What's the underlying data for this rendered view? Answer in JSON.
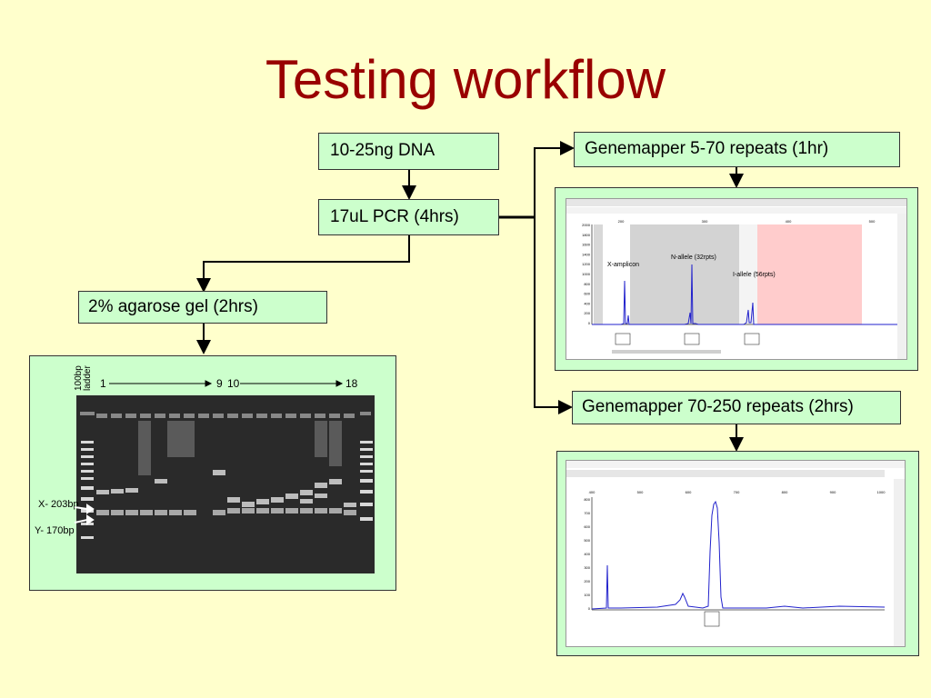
{
  "title": "Testing workflow",
  "steps": {
    "dna": "10-25ng DNA",
    "pcr": "17uL PCR (4hrs)",
    "gel": "2% agarose gel (2hrs)",
    "gm_short": "Genemapper 5-70 repeats (1hr)",
    "gm_long": "Genemapper 70-250 repeats (2hrs)"
  },
  "gel_panel": {
    "ladder_label": "100bp ladder",
    "lane_1": "1",
    "lane_9": "9",
    "lane_10": "10",
    "lane_18": "18",
    "x_band": "X- 203bp",
    "y_band": "Y- 170bp"
  },
  "trace_top": {
    "x_amplicon": "X-amplicon",
    "n_allele": "N-allele (32rpts)",
    "i_allele": "I-allele (56rpts)",
    "y_ticks": [
      "2000",
      "1800",
      "1600",
      "1400",
      "1200",
      "1000",
      "800",
      "600",
      "400",
      "200",
      "0"
    ],
    "x_ticks": [
      "200",
      "300",
      "400",
      "500"
    ]
  },
  "trace_bottom": {
    "y_ticks": [
      "800",
      "700",
      "600",
      "500",
      "400",
      "300",
      "200",
      "100",
      "0"
    ],
    "x_ticks": [
      "400",
      "500",
      "600",
      "700",
      "800",
      "900",
      "1000"
    ]
  },
  "colors": {
    "title": "#990000",
    "box_fill": "#ccffcc",
    "background": "#ffffcc",
    "trace": "#2222cc",
    "highlight": "#ffcccc"
  }
}
